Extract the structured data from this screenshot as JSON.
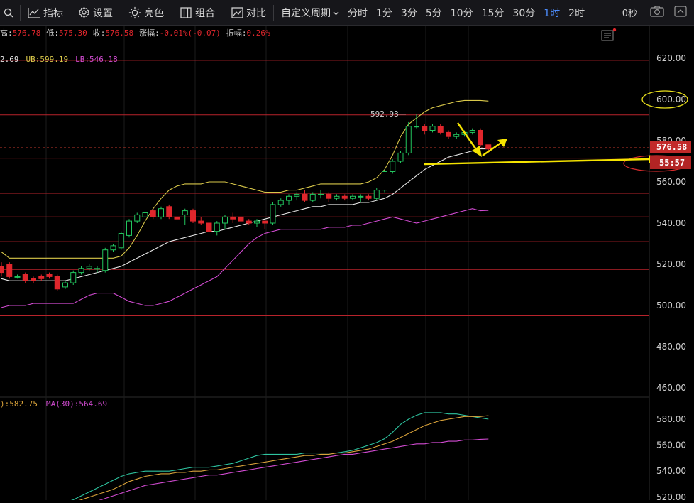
{
  "toolbar": {
    "search_icon": "search-icon",
    "indicator_label": "指标",
    "settings_label": "设置",
    "brightness_label": "亮色",
    "combo_label": "组合",
    "compare_label": "对比",
    "custom_period_label": "自定义周期",
    "periods": [
      "分时",
      "1分",
      "3分",
      "5分",
      "10分",
      "15分",
      "30分",
      "1时",
      "2时"
    ],
    "active_period": "1时",
    "countdown": "0秒",
    "camera_icon": "camera-icon",
    "expand_icon": "chevron-up-icon"
  },
  "info_bar": {
    "high_label": "高:",
    "high": "576.78",
    "low_label": "低:",
    "low": "575.30",
    "close_label": "收:",
    "close": "576.58",
    "change_label": "涨幅:",
    "change": "-0.01%(-0.07)",
    "amplitude_label": "振幅:",
    "amplitude": "0.26%"
  },
  "boll_bar": {
    "mid_fragment": "2.69",
    "ub_label": "UB:",
    "ub": "599.19",
    "lb_label": "LB:",
    "lb": "546.18"
  },
  "ma_bar": {
    "ma_fragment": "):582.75",
    "ma30_label": "MA(30):",
    "ma30": "564.69"
  },
  "price_axis": [
    "620.00",
    "600.00",
    "580.00",
    "560.00",
    "540.00",
    "520.00",
    "500.00",
    "480.00",
    "460.00"
  ],
  "sub_axis": [
    "580.00",
    "560.00",
    "540.00",
    "520.00"
  ],
  "peak_label": "592.93",
  "current_price_tag": "576.58",
  "countdown_tag": "55:57",
  "colors": {
    "up": "#22c55e",
    "down": "#e0262c",
    "mid": "#e6e6e6",
    "ub": "#d9c84a",
    "lb": "#d24bd2",
    "hline": "#b8232b",
    "arrow": "#f5e400",
    "active": "#4c8dff"
  },
  "chart_data": {
    "type": "candlestick",
    "interval": "1时",
    "ylim": [
      455,
      630
    ],
    "candles": [
      [
        519,
        516,
        521,
        514
      ],
      [
        520,
        514,
        521,
        513
      ],
      [
        514,
        514,
        515,
        513
      ],
      [
        515,
        512,
        516,
        511
      ],
      [
        513,
        512,
        514,
        511
      ],
      [
        514,
        513,
        515,
        512
      ],
      [
        515,
        514,
        516,
        513
      ],
      [
        514,
        508,
        515,
        507
      ],
      [
        509,
        511,
        512,
        508
      ],
      [
        511,
        516,
        517,
        510
      ],
      [
        516,
        518,
        519,
        515
      ],
      [
        518,
        519,
        520,
        517
      ],
      [
        518,
        518,
        519,
        516
      ],
      [
        517,
        527,
        528,
        516
      ],
      [
        527,
        529,
        530,
        526
      ],
      [
        528,
        535,
        536,
        527
      ],
      [
        534,
        541,
        542,
        533
      ],
      [
        541,
        544,
        545,
        540
      ],
      [
        543,
        545,
        546,
        542
      ],
      [
        546,
        543,
        547,
        542
      ],
      [
        543,
        547,
        548,
        542
      ],
      [
        548,
        543,
        549,
        542
      ],
      [
        543,
        542,
        545,
        541
      ],
      [
        544,
        546,
        547,
        539
      ],
      [
        546,
        541,
        547,
        540
      ],
      [
        541,
        540,
        543,
        539
      ],
      [
        540,
        536,
        542,
        535
      ],
      [
        536,
        540,
        541,
        534
      ],
      [
        540,
        543,
        544,
        537
      ],
      [
        543,
        542,
        545,
        540
      ],
      [
        543,
        541,
        544,
        539
      ],
      [
        541,
        540,
        542,
        539
      ],
      [
        540,
        541,
        542,
        538
      ],
      [
        541,
        540,
        541,
        537
      ],
      [
        540,
        549,
        550,
        539
      ],
      [
        549,
        551,
        552,
        548
      ],
      [
        551,
        553,
        554,
        549
      ],
      [
        553,
        554,
        555,
        551
      ],
      [
        554,
        551,
        556,
        550
      ],
      [
        551,
        554,
        555,
        550
      ],
      [
        554,
        554,
        556,
        552
      ],
      [
        554,
        552,
        555,
        550
      ],
      [
        552,
        553,
        554,
        551
      ],
      [
        553,
        552,
        554,
        551
      ],
      [
        552,
        553,
        554,
        551
      ],
      [
        553,
        553,
        554,
        550
      ],
      [
        553,
        552,
        554,
        551
      ],
      [
        552,
        556,
        557,
        551
      ],
      [
        556,
        565,
        566,
        555
      ],
      [
        565,
        570,
        571,
        564
      ],
      [
        570,
        574,
        575,
        569
      ],
      [
        574,
        587,
        589,
        573
      ],
      [
        587,
        587,
        593,
        586
      ],
      [
        587,
        585,
        588,
        583
      ],
      [
        585,
        587,
        588,
        584
      ],
      [
        587,
        584,
        588,
        583
      ],
      [
        584,
        582,
        585,
        581
      ],
      [
        582,
        583,
        584,
        581
      ],
      [
        583,
        584,
        585,
        582
      ],
      [
        584,
        585,
        586,
        583
      ],
      [
        585,
        578,
        586,
        577
      ],
      [
        578,
        576,
        577,
        575
      ]
    ],
    "series": [
      {
        "name": "UB",
        "values": [
          526,
          523,
          523,
          523,
          523,
          523,
          523,
          523,
          523,
          523,
          523,
          523,
          523,
          523,
          523,
          524,
          528,
          534,
          541,
          547,
          552,
          556,
          558,
          559,
          559,
          559,
          560,
          560,
          560,
          559,
          558,
          557,
          556,
          555,
          555,
          555,
          556,
          556,
          557,
          558,
          559,
          559,
          559,
          559,
          559,
          559,
          560,
          562,
          566,
          573,
          582,
          588,
          591,
          594,
          596,
          597,
          598,
          599,
          599.5,
          599.5,
          599.5,
          599.19
        ]
      },
      {
        "name": "MID",
        "values": [
          513,
          512,
          512,
          512,
          512,
          512,
          512,
          512,
          512,
          513,
          514,
          515,
          516,
          517,
          518,
          519,
          521,
          523,
          525,
          527,
          529,
          531,
          532,
          533,
          534,
          535,
          536,
          536,
          537,
          538,
          539,
          540,
          541,
          542,
          543,
          544,
          545,
          546,
          547,
          548,
          548,
          549,
          549,
          549,
          549,
          550,
          550,
          551,
          552,
          554,
          557,
          560,
          563,
          566,
          568,
          570,
          572,
          573,
          574,
          575,
          576,
          576
        ]
      },
      {
        "name": "LB",
        "values": [
          499,
          500,
          500,
          500,
          501,
          501,
          501,
          501,
          501,
          501,
          503,
          505,
          506,
          506,
          506,
          504,
          502,
          501,
          500,
          500,
          501,
          502,
          504,
          506,
          508,
          510,
          512,
          514,
          518,
          522,
          526,
          530,
          533,
          535,
          536,
          537,
          537,
          537,
          537,
          537,
          537,
          538,
          538,
          538,
          539,
          539,
          540,
          541,
          542,
          543,
          542,
          541,
          540,
          541,
          542,
          543,
          544,
          545,
          546,
          547,
          546,
          546.18
        ]
      },
      {
        "name": "MA_A",
        "values": [
          502,
          503,
          504,
          506,
          508,
          510,
          512,
          514,
          516,
          518,
          521,
          524,
          527,
          530,
          533,
          536,
          538,
          539,
          540,
          540,
          540,
          540,
          541,
          542,
          543,
          543,
          543,
          544,
          545,
          546,
          548,
          550,
          552,
          553,
          553,
          553,
          553,
          553,
          554,
          554,
          554,
          554,
          554,
          555,
          556,
          558,
          560,
          562,
          565,
          570,
          576,
          580,
          583,
          585,
          585,
          585,
          584,
          584,
          583,
          582,
          581,
          580
        ]
      },
      {
        "name": "MA_B",
        "values": [
          501,
          502,
          503,
          504,
          506,
          508,
          510,
          512,
          514,
          516,
          518,
          520,
          522,
          524,
          526,
          529,
          532,
          534,
          536,
          537,
          538,
          538,
          539,
          539,
          540,
          540,
          541,
          541,
          542,
          543,
          544,
          545,
          546,
          547,
          548,
          549,
          550,
          551,
          552,
          552,
          553,
          553,
          554,
          554,
          555,
          556,
          557,
          559,
          561,
          563,
          566,
          569,
          572,
          575,
          577,
          579,
          580,
          581,
          582,
          582,
          582,
          582.75
        ]
      },
      {
        "name": "MA(30)",
        "values": [
          498,
          499,
          500,
          501,
          502,
          504,
          506,
          508,
          510,
          512,
          513,
          515,
          517,
          519,
          521,
          523,
          525,
          527,
          529,
          530,
          531,
          532,
          533,
          534,
          535,
          536,
          537,
          537,
          538,
          539,
          540,
          541,
          542,
          543,
          544,
          545,
          546,
          547,
          548,
          549,
          550,
          551,
          552,
          553,
          553,
          554,
          555,
          556,
          557,
          558,
          559,
          560,
          561,
          561,
          562,
          562,
          563,
          563,
          564,
          564,
          564.5,
          564.69
        ]
      }
    ],
    "horizontal_lines": [
      619,
      592.5,
      571.5,
      554.5,
      543,
      531,
      517.5,
      495
    ],
    "current_price": 576.58,
    "peak": 592.93
  }
}
